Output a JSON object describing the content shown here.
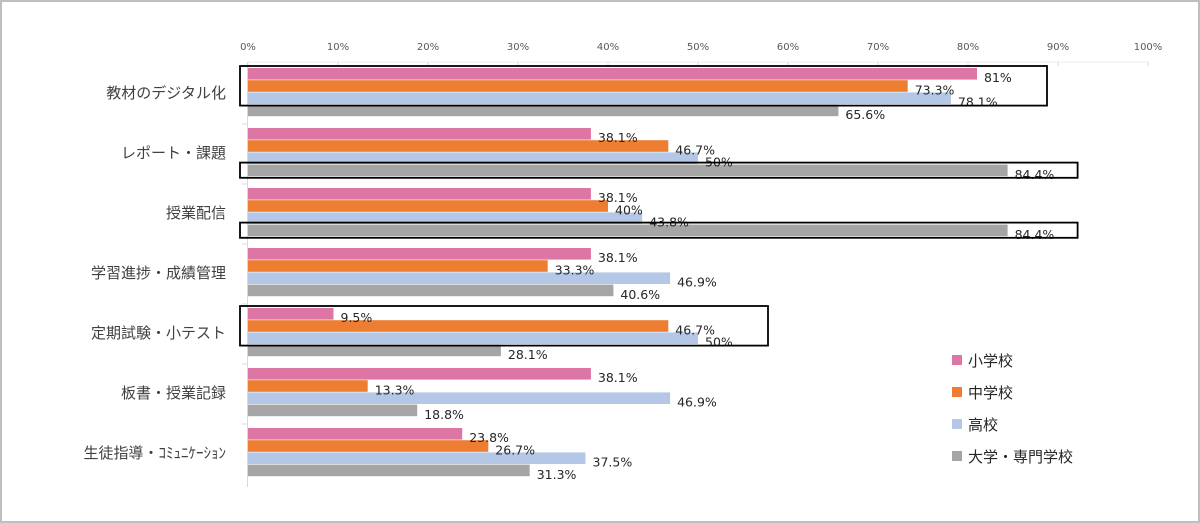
{
  "chart_data": {
    "type": "bar",
    "orientation": "horizontal",
    "title": "",
    "xlabel": "",
    "ylabel": "",
    "xlim": [
      0,
      100
    ],
    "x_ticks": [
      "0%",
      "10%",
      "20%",
      "30%",
      "40%",
      "50%",
      "60%",
      "70%",
      "80%",
      "90%",
      "100%"
    ],
    "grid": true,
    "legend_position": "bottom-right",
    "categories": [
      "教材のデジタル化",
      "レポート・課題",
      "授業配信",
      "学習進捗・成績管理",
      "定期試験・小テスト",
      "板書・授業記録",
      "生徒指導・ｺﾐｭﾆｹｰｼｮﾝ"
    ],
    "series": [
      {
        "name": "小学校",
        "color": "#dd76a4",
        "values": [
          81,
          38.1,
          38.1,
          38.1,
          9.5,
          38.1,
          23.8
        ],
        "labels": [
          "81%",
          "38.1%",
          "38.1%",
          "38.1%",
          "9.5%",
          "38.1%",
          "23.8%"
        ]
      },
      {
        "name": "中学校",
        "color": "#ed7d31",
        "values": [
          73.3,
          46.7,
          40,
          33.3,
          46.7,
          13.3,
          26.7
        ],
        "labels": [
          "73.3%",
          "46.7%",
          "40%",
          "33.3%",
          "46.7%",
          "13.3%",
          "26.7%"
        ]
      },
      {
        "name": "高校",
        "color": "#b4c7e7",
        "values": [
          78.1,
          50,
          43.8,
          46.9,
          50,
          46.9,
          37.5
        ],
        "labels": [
          "78.1%",
          "50%",
          "43.8%",
          "46.9%",
          "50%",
          "46.9%",
          "37.5%"
        ]
      },
      {
        "name": "大学・専門学校",
        "color": "#a5a5a5",
        "values": [
          65.6,
          84.4,
          84.4,
          40.6,
          28.1,
          18.8,
          31.3
        ],
        "labels": [
          "65.6%",
          "84.4%",
          "84.4%",
          "40.6%",
          "28.1%",
          "18.8%",
          "31.3%"
        ]
      }
    ],
    "highlights": [
      {
        "category_index": 0,
        "series": [
          0,
          1,
          2
        ]
      },
      {
        "category_index": 1,
        "series": [
          3
        ]
      },
      {
        "category_index": 2,
        "series": [
          3
        ]
      },
      {
        "category_index": 4,
        "series": [
          0,
          1,
          2
        ]
      }
    ]
  }
}
